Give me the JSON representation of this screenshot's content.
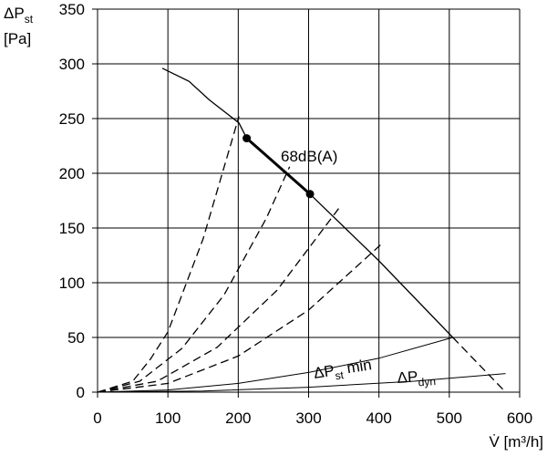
{
  "chart_data": {
    "type": "line",
    "y_label": {
      "main": "ΔP",
      "sub": "st",
      "unit": "[Pa]"
    },
    "x_label": "V̇ [m³/h]",
    "xlim": [
      0,
      600
    ],
    "xticks": [
      0,
      100,
      200,
      300,
      400,
      500,
      600
    ],
    "ylim": [
      0,
      350
    ],
    "yticks": [
      0,
      50,
      100,
      150,
      200,
      250,
      300,
      350
    ],
    "grid": true,
    "series": [
      {
        "x": [
          92,
          130,
          159,
          201,
          212,
          302,
          400,
          505
        ],
        "values": [
          296,
          284,
          267,
          246,
          232,
          181,
          120,
          50
        ],
        "color": "#000000",
        "style": "solid",
        "width": 1.3
      },
      {
        "x": [
          505,
          580
        ],
        "values": [
          50,
          0
        ],
        "color": "#000000",
        "style": "dashed",
        "width": 1.3
      },
      {
        "x": [
          212,
          302
        ],
        "values": [
          232,
          181
        ],
        "color": "#000000",
        "style": "solid",
        "width": 3,
        "markers": true
      },
      {
        "x": [
          0,
          50,
          75,
          100,
          150,
          201
        ],
        "values": [
          0,
          10,
          30,
          55,
          140,
          252
        ],
        "color": "#000000",
        "style": "dashed",
        "width": 1.3
      },
      {
        "x": [
          0,
          60,
          120,
          180,
          240,
          273
        ],
        "values": [
          0,
          10,
          40,
          89,
          159,
          206
        ],
        "color": "#000000",
        "style": "dashed",
        "width": 1.3
      },
      {
        "x": [
          0,
          85,
          170,
          255,
          343
        ],
        "values": [
          0,
          10,
          41,
          93,
          168
        ],
        "color": "#000000",
        "style": "dashed",
        "width": 1.3
      },
      {
        "x": [
          0,
          100,
          200,
          300,
          403
        ],
        "values": [
          0,
          8,
          33,
          75,
          135
        ],
        "color": "#000000",
        "style": "dashed",
        "width": 1.3
      },
      {
        "x": [
          0,
          100,
          200,
          300,
          400,
          505
        ],
        "values": [
          0,
          2,
          8,
          18,
          31,
          50
        ],
        "color": "#000000",
        "style": "solid",
        "width": 1
      },
      {
        "x": [
          0,
          150,
          300,
          450,
          580
        ],
        "values": [
          0,
          1,
          4.5,
          10,
          17
        ],
        "color": "#000000",
        "style": "solid",
        "width": 1
      }
    ],
    "annotations": [
      {
        "text": "68dB(A)"
      },
      {
        "text": "ΔP",
        "sub": "st",
        "after": " min"
      },
      {
        "text": "ΔP",
        "sub": "dyn"
      }
    ]
  }
}
